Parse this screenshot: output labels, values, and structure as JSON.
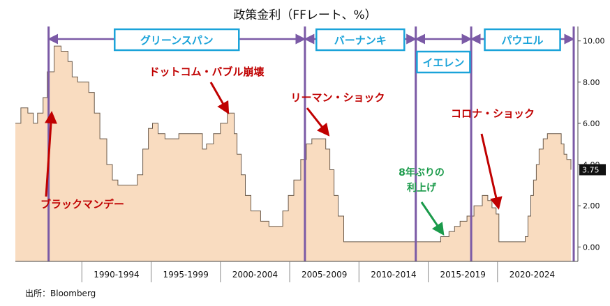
{
  "chart_data": {
    "type": "area",
    "title": "政策金利（FFレート、%）",
    "source": "出所：Bloomberg",
    "ylim": [
      -0.7,
      10.7
    ],
    "xlim": [
      1985.2,
      2025.5
    ],
    "y_ticks": [
      "10.00",
      "8.00",
      "6.00",
      "4.00",
      "2.00",
      "0.00"
    ],
    "y_tick_values": [
      10,
      8,
      6,
      4,
      2,
      0
    ],
    "y_axis_position": "right",
    "last_value_label": "3.75",
    "categories": [
      "1990-1994",
      "1995-1999",
      "2000-2004",
      "2005-2009",
      "2010-2014",
      "2015-2019",
      "2020-2024"
    ],
    "category_starts": [
      1990,
      1995,
      2000,
      2005,
      2010,
      2015,
      2020
    ],
    "series": [
      {
        "x": [
          1985.2,
          1985.6,
          1986.1,
          1986.5,
          1986.8,
          1987.2,
          1987.5,
          1988.0,
          1988.5,
          1989.0,
          1989.3,
          1989.7,
          1990.0,
          1990.5,
          1990.9,
          1991.3,
          1991.8,
          1992.2,
          1992.6,
          1993.0,
          1993.5,
          1994.0,
          1994.4,
          1994.8,
          1995.1,
          1995.5,
          1996.0,
          1996.5,
          1997.0,
          1997.5,
          1998.0,
          1998.7,
          1999.0,
          1999.5,
          2000.0,
          2000.5,
          2001.0,
          2001.2,
          2001.5,
          2001.8,
          2002.2,
          2002.9,
          2003.5,
          2004.0,
          2004.5,
          2004.9,
          2005.3,
          2005.8,
          2006.2,
          2006.6,
          2007.0,
          2007.6,
          2007.9,
          2008.2,
          2008.5,
          2008.9,
          2009.5,
          2012.0,
          2015.0,
          2015.9,
          2016.5,
          2016.9,
          2017.3,
          2017.8,
          2018.3,
          2018.9,
          2019.3,
          2019.6,
          2019.9,
          2020.1,
          2020.3,
          2021.0,
          2022.0,
          2022.2,
          2022.4,
          2022.6,
          2022.8,
          2023.0,
          2023.3,
          2023.6,
          2024.0,
          2024.6,
          2024.8,
          2025.0,
          2025.3
        ],
        "values": [
          6.0,
          6.75,
          6.5,
          6.0,
          6.5,
          7.25,
          8.5,
          9.75,
          9.5,
          9.0,
          8.25,
          8.0,
          8.0,
          7.5,
          6.5,
          5.25,
          4.0,
          3.25,
          3.0,
          3.0,
          3.0,
          3.5,
          4.75,
          5.75,
          6.0,
          5.5,
          5.25,
          5.25,
          5.5,
          5.5,
          5.5,
          4.75,
          5.0,
          5.5,
          6.0,
          6.5,
          5.5,
          4.5,
          3.5,
          2.5,
          1.75,
          1.25,
          1.0,
          1.0,
          1.75,
          2.5,
          3.25,
          4.25,
          5.0,
          5.25,
          5.25,
          4.75,
          3.75,
          2.5,
          1.5,
          0.25,
          0.25,
          0.25,
          0.25,
          0.5,
          0.75,
          1.0,
          1.25,
          1.5,
          2.0,
          2.5,
          2.25,
          1.9,
          1.6,
          0.25,
          0.25,
          0.25,
          0.5,
          1.5,
          2.5,
          3.25,
          4.0,
          4.75,
          5.25,
          5.5,
          5.5,
          5.0,
          4.5,
          4.25,
          3.75
        ]
      }
    ],
    "eras": [
      {
        "label": "グリーンスパン",
        "start": 1987.6,
        "end": 2006.1
      },
      {
        "label": "バーナンキ",
        "start": 2006.1,
        "end": 2014.1
      },
      {
        "label": "イエレン",
        "start": 2014.1,
        "end": 2018.1
      },
      {
        "label": "パウエル",
        "start": 2018.1,
        "end": 2025.5
      }
    ],
    "annotations": [
      {
        "text": "ブラックマンデー",
        "color": "red",
        "target_x": 1987.8,
        "target_y": 6.5
      },
      {
        "text": "ドットコム・バブル崩壊",
        "color": "red",
        "target_x": 2000.4,
        "target_y": 6.5
      },
      {
        "text": "リーマン・ショック",
        "color": "red",
        "target_x": 2007.6,
        "target_y": 5.4
      },
      {
        "text": "コロナ・ショック",
        "color": "red",
        "target_x": 2020.0,
        "target_y": 1.9
      },
      {
        "text": "8年ぶりの",
        "color": "green",
        "target_x": 2015.9,
        "target_y": 0.6
      },
      {
        "text": "利上げ",
        "color": "green",
        "target_x": 2015.9,
        "target_y": 0.6
      }
    ],
    "colors": {
      "area_fill": "#f9dcc0",
      "area_stroke": "#6b5a4a",
      "era_line": "#7b5aa6",
      "era_box_border": "#1aa3d9",
      "annotation_red": "#c00000",
      "annotation_green": "#1a9a4a",
      "last_value_bg": "#111111"
    },
    "grid": false,
    "legend": "none"
  }
}
